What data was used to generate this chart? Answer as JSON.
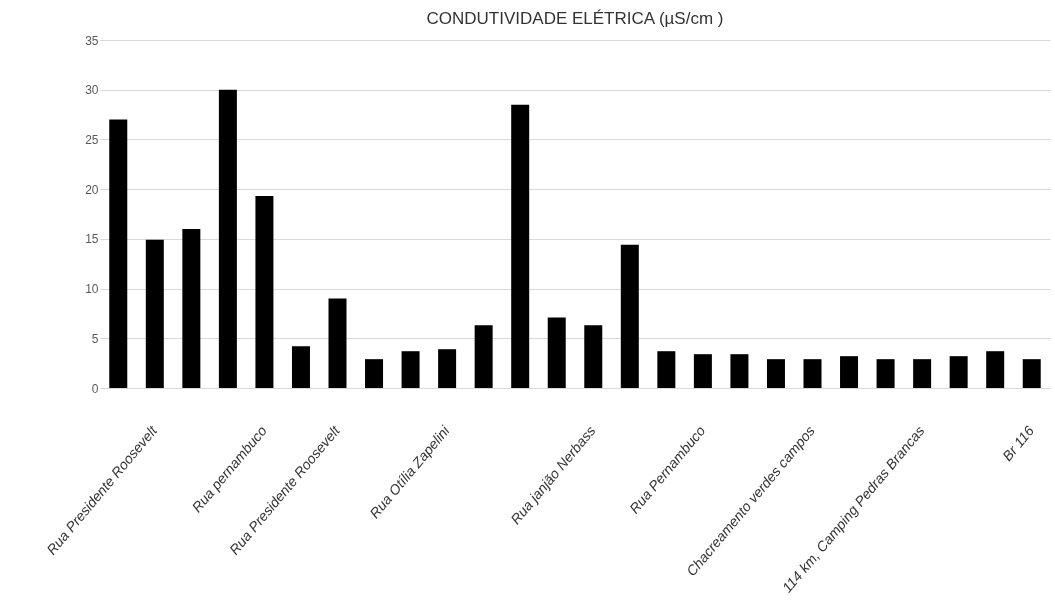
{
  "chart_data": {
    "type": "bar",
    "title": "CONDUTIVIDADE ELÉTRICA (µS/cm   )",
    "categories": [
      null,
      "Rua Presidente Roosevelt",
      null,
      null,
      "Rua pernambuco",
      null,
      "Rua Presidente Roosevelt",
      null,
      null,
      "Rua Otília Zapelini",
      null,
      null,
      null,
      "Rua janjão Nerbass",
      null,
      null,
      "Rua Pernambuco",
      null,
      null,
      "Chacreamento verdes campos",
      null,
      null,
      "114 km, Camping Pedras Brancas",
      null,
      null,
      "Br 116"
    ],
    "values": [
      27,
      14.9,
      16,
      30,
      19.3,
      4.2,
      9,
      2.9,
      3.7,
      3.9,
      6.3,
      28.5,
      7.1,
      6.3,
      14.4,
      3.7,
      3.4,
      3.4,
      2.9,
      2.9,
      3.2,
      2.9,
      2.9,
      3.2,
      3.7,
      2.9
    ],
    "color": "#000000",
    "ylim": [
      0,
      35
    ],
    "yticks": [
      0,
      5,
      10,
      15,
      20,
      25,
      30,
      35
    ],
    "grid": "y"
  }
}
